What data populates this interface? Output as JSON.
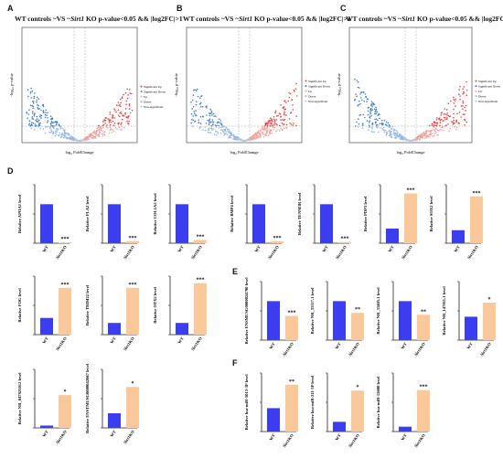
{
  "panels": {
    "A": "A",
    "B": "B",
    "C": "C",
    "D": "D",
    "E": "E",
    "F": "F"
  },
  "volcano": {
    "title_prefix": "WT controls ~VS ~",
    "title_gene": "Sirt1",
    "title_suffix": " KO p-value<0.05 && |log2FC|>1",
    "xlabel": "log₂ FoldChange",
    "ylabel": "-log₁₀ p-value",
    "legend": [
      "Significant Up",
      "Significant Down",
      "Up",
      "Down",
      "Non-significant"
    ],
    "colors": {
      "up": "#e8453c",
      "down": "#3a7dd1",
      "ns": "#b9c6d6"
    }
  },
  "colors": {
    "wt": "#3b3df0",
    "ko": "#fbc89a",
    "axis": "#222222"
  },
  "chart_data": [
    {
      "type": "bar",
      "ylabel": "Relative APOA1 level",
      "categories": [
        "WT",
        "Sirt1KO"
      ],
      "values": [
        1.0,
        0.02
      ],
      "ylim": [
        0,
        1.5
      ],
      "significance": "***"
    },
    {
      "type": "bar",
      "ylabel": "Relative PLA2 level",
      "categories": [
        "WT",
        "Sirt1KO"
      ],
      "values": [
        1.0,
        0.05
      ],
      "ylim": [
        0,
        1.5
      ],
      "significance": "***"
    },
    {
      "type": "bar",
      "ylabel": "Relative COL1A2 level",
      "categories": [
        "WT",
        "Sirt1KO"
      ],
      "values": [
        1.0,
        0.08
      ],
      "ylim": [
        0,
        1.5
      ],
      "significance": "***"
    },
    {
      "type": "bar",
      "ylabel": "Relative BMP4 level",
      "categories": [
        "WT",
        "Sirt1KO"
      ],
      "values": [
        1.0,
        0.05
      ],
      "ylim": [
        0,
        1.5
      ],
      "significance": "***"
    },
    {
      "type": "bar",
      "ylabel": "Relative TENM3R level",
      "categories": [
        "WT",
        "Sirt1KO"
      ],
      "values": [
        1.0,
        0.03
      ],
      "ylim": [
        0,
        1.5
      ],
      "significance": "***"
    },
    {
      "type": "bar",
      "ylabel": "Relative PDP3 level",
      "categories": [
        "WT",
        "Sirt1KO"
      ],
      "values": [
        1.0,
        3.4
      ],
      "ylim": [
        0,
        4
      ],
      "significance": "***"
    },
    {
      "type": "bar",
      "ylabel": "Relative SOX2 level",
      "categories": [
        "WT",
        "Sirt1KO"
      ],
      "values": [
        1.0,
        3.6
      ],
      "ylim": [
        0,
        4.5
      ],
      "significance": "***"
    },
    {
      "type": "bar",
      "ylabel": "Relative FOG level",
      "categories": [
        "WT",
        "Sirt1KO"
      ],
      "values": [
        1.0,
        2.8
      ],
      "ylim": [
        0,
        3.5
      ],
      "significance": "***"
    },
    {
      "type": "bar",
      "ylabel": "Relative TRIM22 level",
      "categories": [
        "WT",
        "Sirt1KO"
      ],
      "values": [
        1.0,
        4.0
      ],
      "ylim": [
        0,
        5
      ],
      "significance": "***"
    },
    {
      "type": "bar",
      "ylabel": "Relative OTX2 level",
      "categories": [
        "WT",
        "Sirt1KO"
      ],
      "values": [
        1.0,
        4.4
      ],
      "ylim": [
        0,
        5
      ],
      "significance": "***"
    },
    {
      "type": "bar",
      "ylabel": "Relative ENSMUSG0000024790 level",
      "categories": [
        "WT",
        "Sirt1KO"
      ],
      "values": [
        1.0,
        0.62
      ],
      "ylim": [
        0,
        1.5
      ],
      "significance": "***"
    },
    {
      "type": "bar",
      "ylabel": "Relative NR_33117.1 level",
      "categories": [
        "WT",
        "Sirt1KO"
      ],
      "values": [
        1.0,
        0.7
      ],
      "ylim": [
        0,
        1.5
      ],
      "significance": "**"
    },
    {
      "type": "bar",
      "ylabel": "Relative NR_33405.1 level",
      "categories": [
        "WT",
        "Sirt1KO"
      ],
      "values": [
        1.0,
        0.65
      ],
      "ylim": [
        0,
        1.5
      ],
      "significance": "**"
    },
    {
      "type": "bar",
      "ylabel": "Relative NR_147011.1 level",
      "categories": [
        "WT",
        "Sirt1KO"
      ],
      "values": [
        1.0,
        1.6
      ],
      "ylim": [
        0,
        2.5
      ],
      "significance": "*"
    },
    {
      "type": "bar",
      "ylabel": "Relative NR_047925012 level",
      "categories": [
        "WT",
        "Sirt1KO"
      ],
      "values": [
        1.0,
        14.0
      ],
      "ylim": [
        0,
        25
      ],
      "significance": "*"
    },
    {
      "type": "bar",
      "ylabel": "Relative ENSTMUSG0000042067 level",
      "categories": [
        "WT",
        "Sirt1KO"
      ],
      "values": [
        1.0,
        2.8
      ],
      "ylim": [
        0,
        4
      ],
      "significance": "*"
    },
    {
      "type": "bar",
      "ylabel": "Relative hsa-miR-5013-3P level",
      "categories": [
        "WT",
        "Sirt1KO"
      ],
      "values": [
        1.0,
        2.0
      ],
      "ylim": [
        0,
        2.5
      ],
      "significance": "**"
    },
    {
      "type": "bar",
      "ylabel": "Relative hsa-miR-211-3P level",
      "categories": [
        "WT",
        "Sirt1KO"
      ],
      "values": [
        1.0,
        4.2
      ],
      "ylim": [
        0,
        6
      ],
      "significance": "*"
    },
    {
      "type": "bar",
      "ylabel": "Relative hsa-miR-12608 level",
      "categories": [
        "WT",
        "Sirt1KO"
      ],
      "values": [
        1.0,
        8.5
      ],
      "ylim": [
        0,
        12
      ],
      "significance": "***"
    }
  ]
}
